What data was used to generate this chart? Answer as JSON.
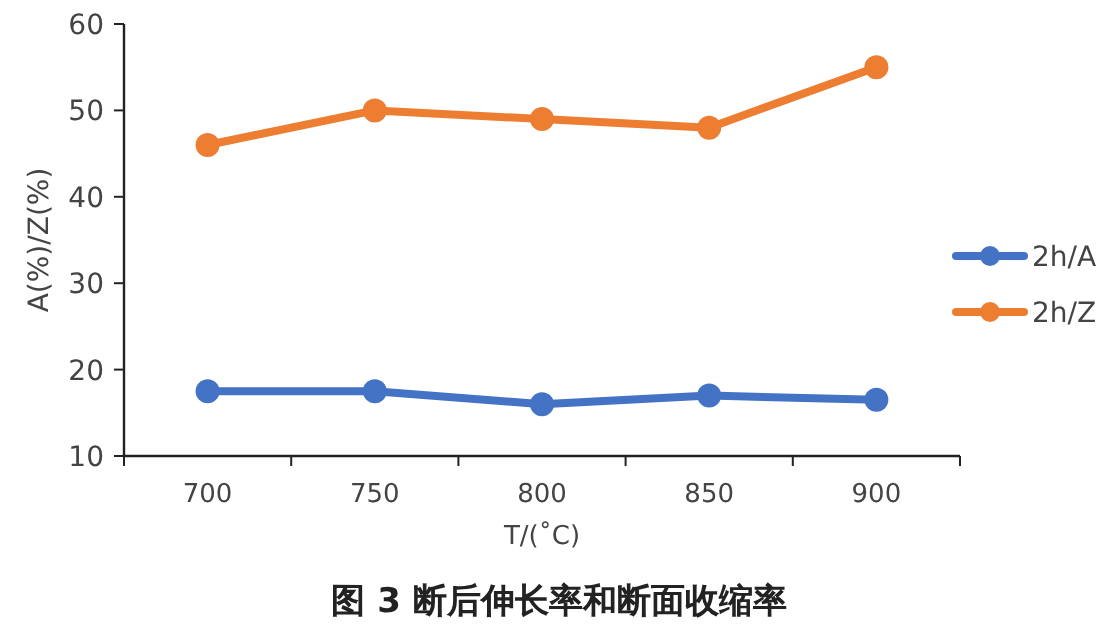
{
  "chart_data": {
    "type": "line",
    "title": "图 3 断后伸长率和断面收缩率",
    "xlabel": "T/(˚C)",
    "ylabel": "A(%)/Z(%)",
    "categories": [
      "700",
      "750",
      "800",
      "850",
      "900"
    ],
    "series": [
      {
        "name": "2h/A",
        "color": "#4472c4",
        "values": [
          17.5,
          17.5,
          16,
          17,
          16.5
        ]
      },
      {
        "name": "2h/Z",
        "color": "#ed7d31",
        "values": [
          46,
          50,
          49,
          48,
          55
        ]
      }
    ],
    "ylim": [
      10,
      60
    ],
    "yticks": [
      10,
      20,
      30,
      40,
      50,
      60
    ],
    "grid": false,
    "legend": "right",
    "marker": "circle",
    "line_style": "solid"
  }
}
